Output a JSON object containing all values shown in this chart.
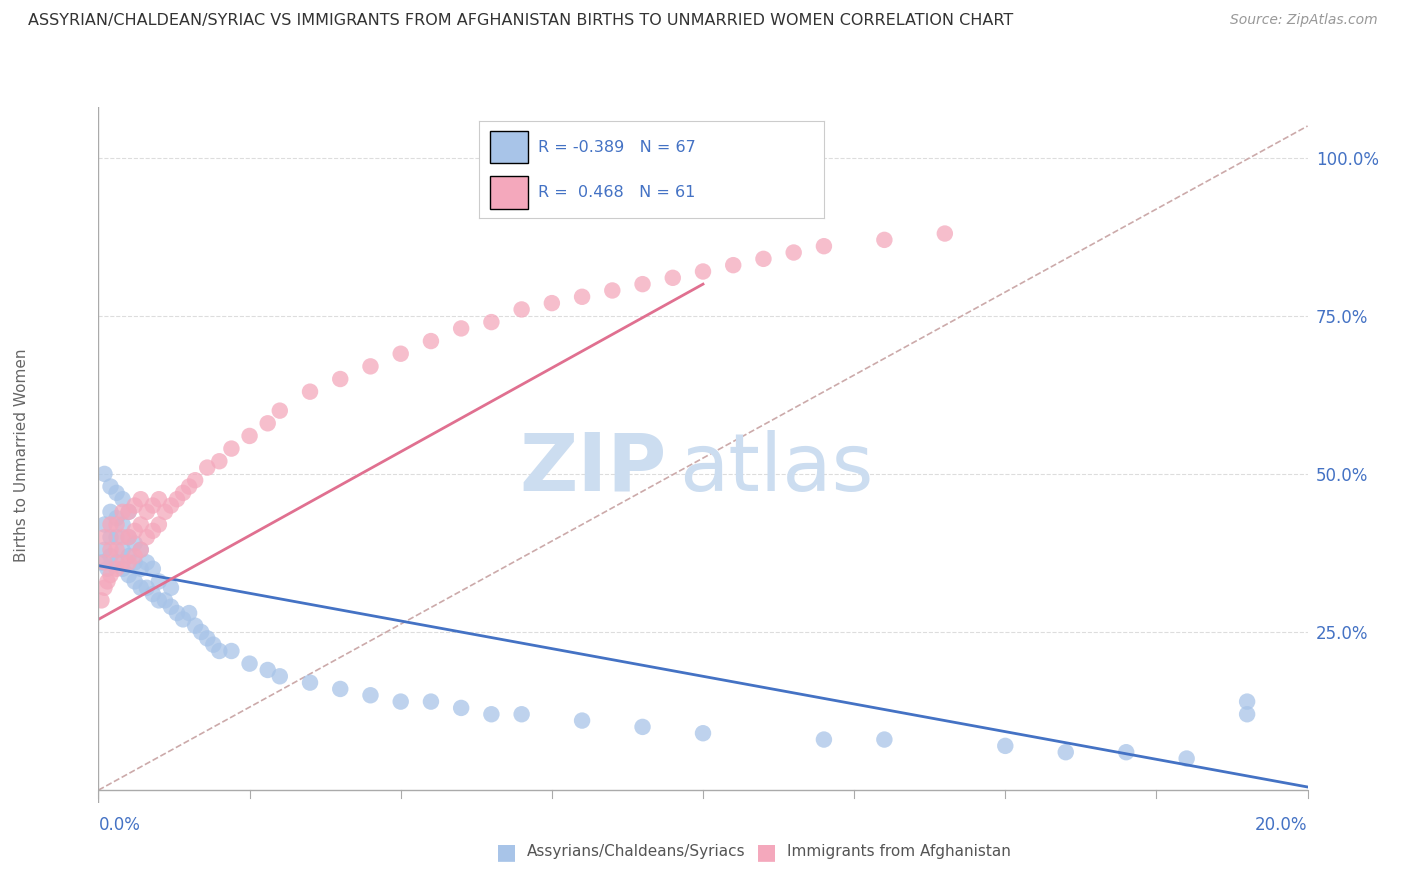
{
  "title": "ASSYRIAN/CHALDEAN/SYRIAC VS IMMIGRANTS FROM AFGHANISTAN BIRTHS TO UNMARRIED WOMEN CORRELATION CHART",
  "source": "Source: ZipAtlas.com",
  "ylabel": "Births to Unmarried Women",
  "right_yticks": [
    "100.0%",
    "75.0%",
    "50.0%",
    "25.0%"
  ],
  "right_ytick_vals": [
    1.0,
    0.75,
    0.5,
    0.25
  ],
  "blue_color": "#a8c4e8",
  "pink_color": "#f4a8bc",
  "trend_blue_color": "#4472c4",
  "trend_pink_color": "#e07090",
  "ref_line_color": "#ccaaaa",
  "watermark_color": "#ccddf0",
  "axis_label_color": "#4472c4",
  "legend_r_color": "#4472c4",
  "legend_n_color": "#4472c4",
  "background_color": "#ffffff",
  "grid_color": "#dddddd",
  "blue_scatter_x": [
    0.0005,
    0.001,
    0.001,
    0.001,
    0.0015,
    0.002,
    0.002,
    0.002,
    0.002,
    0.003,
    0.003,
    0.003,
    0.003,
    0.004,
    0.004,
    0.004,
    0.004,
    0.005,
    0.005,
    0.005,
    0.005,
    0.006,
    0.006,
    0.006,
    0.007,
    0.007,
    0.007,
    0.008,
    0.008,
    0.009,
    0.009,
    0.01,
    0.01,
    0.011,
    0.012,
    0.012,
    0.013,
    0.014,
    0.015,
    0.016,
    0.017,
    0.018,
    0.019,
    0.02,
    0.022,
    0.025,
    0.028,
    0.03,
    0.035,
    0.04,
    0.045,
    0.05,
    0.055,
    0.06,
    0.065,
    0.07,
    0.08,
    0.09,
    0.1,
    0.12,
    0.13,
    0.15,
    0.16,
    0.17,
    0.18,
    0.19,
    0.19
  ],
  "blue_scatter_y": [
    0.36,
    0.38,
    0.42,
    0.5,
    0.35,
    0.37,
    0.4,
    0.44,
    0.48,
    0.36,
    0.4,
    0.43,
    0.47,
    0.35,
    0.38,
    0.42,
    0.46,
    0.34,
    0.37,
    0.4,
    0.44,
    0.33,
    0.36,
    0.39,
    0.32,
    0.35,
    0.38,
    0.32,
    0.36,
    0.31,
    0.35,
    0.3,
    0.33,
    0.3,
    0.29,
    0.32,
    0.28,
    0.27,
    0.28,
    0.26,
    0.25,
    0.24,
    0.23,
    0.22,
    0.22,
    0.2,
    0.19,
    0.18,
    0.17,
    0.16,
    0.15,
    0.14,
    0.14,
    0.13,
    0.12,
    0.12,
    0.11,
    0.1,
    0.09,
    0.08,
    0.08,
    0.07,
    0.06,
    0.06,
    0.05,
    0.14,
    0.12
  ],
  "pink_scatter_x": [
    0.0005,
    0.001,
    0.001,
    0.001,
    0.0015,
    0.002,
    0.002,
    0.002,
    0.003,
    0.003,
    0.003,
    0.004,
    0.004,
    0.004,
    0.005,
    0.005,
    0.005,
    0.006,
    0.006,
    0.006,
    0.007,
    0.007,
    0.007,
    0.008,
    0.008,
    0.009,
    0.009,
    0.01,
    0.01,
    0.011,
    0.012,
    0.013,
    0.014,
    0.015,
    0.016,
    0.018,
    0.02,
    0.022,
    0.025,
    0.028,
    0.03,
    0.035,
    0.04,
    0.045,
    0.05,
    0.055,
    0.06,
    0.065,
    0.07,
    0.075,
    0.08,
    0.085,
    0.09,
    0.095,
    0.1,
    0.105,
    0.11,
    0.115,
    0.12,
    0.13,
    0.14
  ],
  "pink_scatter_y": [
    0.3,
    0.32,
    0.36,
    0.4,
    0.33,
    0.34,
    0.38,
    0.42,
    0.35,
    0.38,
    0.42,
    0.36,
    0.4,
    0.44,
    0.36,
    0.4,
    0.44,
    0.37,
    0.41,
    0.45,
    0.38,
    0.42,
    0.46,
    0.4,
    0.44,
    0.41,
    0.45,
    0.42,
    0.46,
    0.44,
    0.45,
    0.46,
    0.47,
    0.48,
    0.49,
    0.51,
    0.52,
    0.54,
    0.56,
    0.58,
    0.6,
    0.63,
    0.65,
    0.67,
    0.69,
    0.71,
    0.73,
    0.74,
    0.76,
    0.77,
    0.78,
    0.79,
    0.8,
    0.81,
    0.82,
    0.83,
    0.84,
    0.85,
    0.86,
    0.87,
    0.88
  ],
  "blue_trend_x": [
    0.0,
    0.2
  ],
  "blue_trend_y": [
    0.355,
    0.005
  ],
  "pink_trend_x": [
    0.0,
    0.1
  ],
  "pink_trend_y": [
    0.27,
    0.8
  ],
  "ref_line_x": [
    0.0,
    0.2
  ],
  "ref_line_y": [
    0.0,
    1.05
  ],
  "xlim": [
    0.0,
    0.2
  ],
  "ylim": [
    -0.02,
    1.08
  ],
  "plot_area_ylim": [
    0.0,
    1.08
  ]
}
